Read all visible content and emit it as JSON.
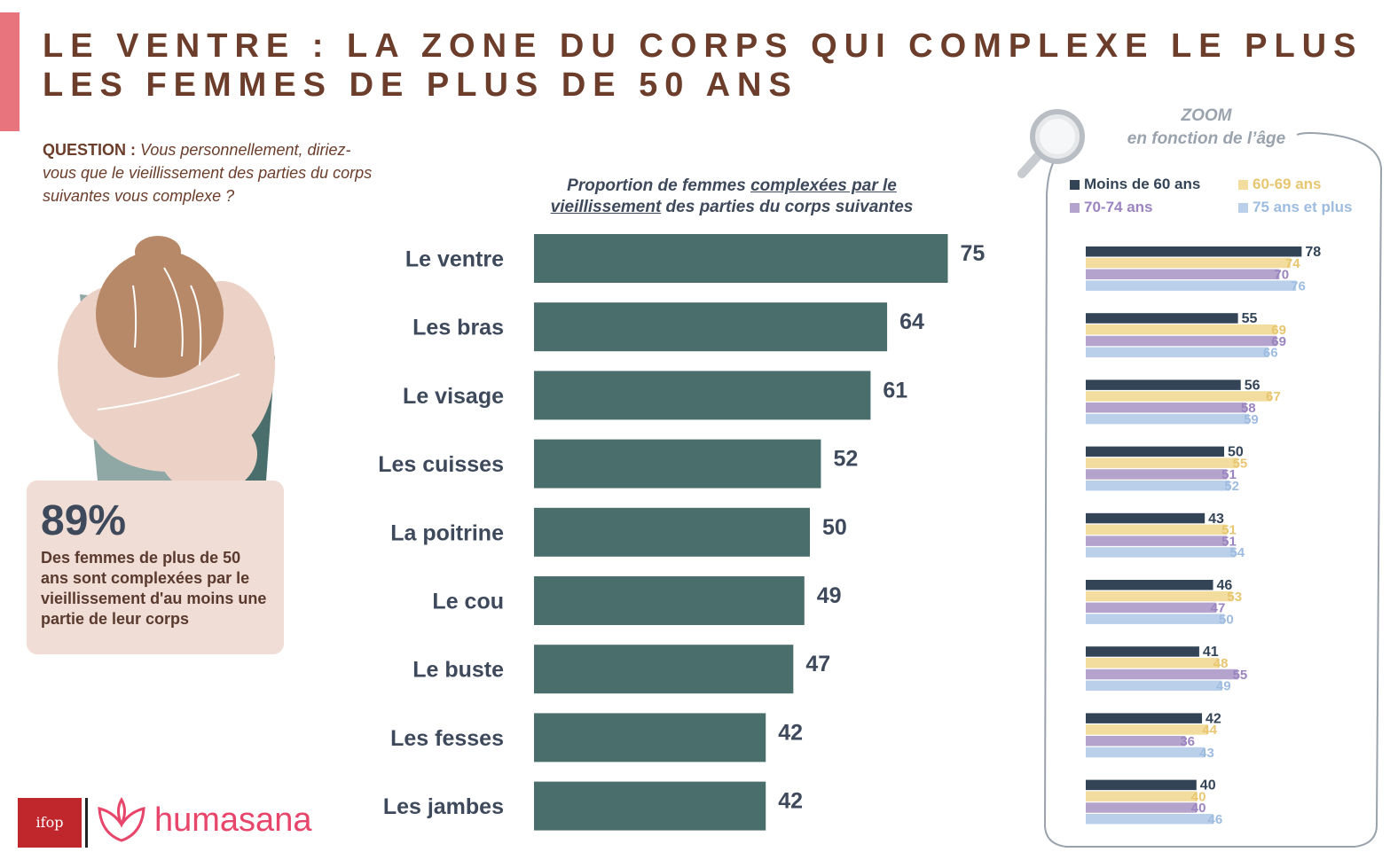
{
  "colors": {
    "accent_strip": "#e8747e",
    "title": "#6b3d2a",
    "main_bar": "#4a6e6b",
    "value_text": "#3e4a5c",
    "stat_box": "#f0ddd5",
    "series": [
      "#334457",
      "#f2dd9f",
      "#b4a3cc",
      "#bad0ea"
    ],
    "series_label": [
      "#334457",
      "#e8c670",
      "#9b84bf",
      "#9ebce0"
    ],
    "zoom_frame": "#9aa3ad",
    "ifop_red": "#c0272d",
    "humasana_pink": "#e8456b"
  },
  "title": {
    "line1": "LE VENTRE : LA ZONE DU CORPS QUI COMPLEXE LE PLUS",
    "line2": "LES FEMMES DE PLUS DE 50 ANS"
  },
  "question": {
    "label": "QUESTION :",
    "text": "Vous personnellement, diriez-vous que le vieillissement des parties du corps suivantes vous complexe ?"
  },
  "stat": {
    "value": "89%",
    "text": "Des femmes de plus de 50 ans sont complexées par le vieillissement d'au moins une partie de leur corps"
  },
  "chart_subtitle": {
    "part1": "Proportion de femmes ",
    "underlined1": "complexées par le",
    "underlined2": "vieillissement",
    "part2": " des parties du corps suivantes"
  },
  "zoom": {
    "title": "ZOOM",
    "subtitle": "en fonction de l’âge"
  },
  "logos": {
    "ifop": "ifop",
    "humasana": "humasana"
  },
  "chart_data": [
    {
      "type": "bar",
      "orientation": "horizontal",
      "categories": [
        "Le ventre",
        "Les bras",
        "Le visage",
        "Les cuisses",
        "La poitrine",
        "Le cou",
        "Le buste",
        "Les fesses",
        "Les jambes"
      ],
      "values": [
        75,
        64,
        61,
        52,
        50,
        49,
        47,
        42,
        42
      ],
      "xlim": [
        0,
        80
      ],
      "grid": false
    },
    {
      "type": "bar",
      "orientation": "horizontal",
      "categories": [
        "Le ventre",
        "Les bras",
        "Le visage",
        "Les cuisses",
        "La poitrine",
        "Le cou",
        "Le buste",
        "Les fesses",
        "Les jambes"
      ],
      "series": [
        {
          "name": "Moins de 60 ans",
          "values": [
            78,
            55,
            56,
            50,
            43,
            46,
            41,
            42,
            40
          ]
        },
        {
          "name": "60-69 ans",
          "values": [
            74,
            69,
            67,
            55,
            51,
            53,
            48,
            44,
            40
          ]
        },
        {
          "name": "70-74 ans",
          "values": [
            70,
            69,
            58,
            51,
            51,
            47,
            55,
            36,
            40
          ]
        },
        {
          "name": "75 ans et plus",
          "values": [
            76,
            66,
            59,
            52,
            54,
            50,
            49,
            43,
            46
          ]
        }
      ],
      "xlim": [
        0,
        80
      ],
      "legend": "top",
      "grid": false
    }
  ]
}
